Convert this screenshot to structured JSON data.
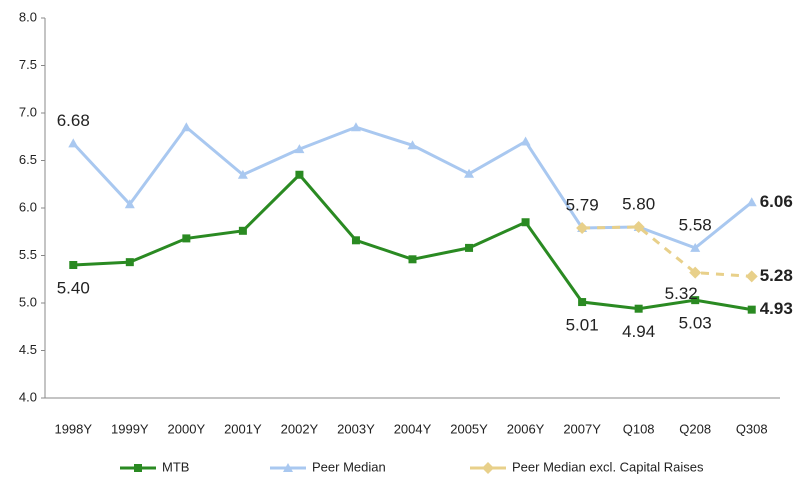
{
  "chart_data": {
    "type": "line",
    "categories": [
      "1998Y",
      "1999Y",
      "2000Y",
      "2001Y",
      "2002Y",
      "2003Y",
      "2004Y",
      "2005Y",
      "2006Y",
      "2007Y",
      "Q108",
      "Q208",
      "Q308"
    ],
    "ylim": [
      4.0,
      8.0
    ],
    "yticks": [
      {
        "value": 4.0,
        "label": "4.0"
      },
      {
        "value": 4.5,
        "label": "4.5"
      },
      {
        "value": 5.0,
        "label": "5.0"
      },
      {
        "value": 5.5,
        "label": "5.5"
      },
      {
        "value": 6.0,
        "label": "6.0"
      },
      {
        "value": 6.5,
        "label": "6.5"
      },
      {
        "value": 7.0,
        "label": "7.0"
      },
      {
        "value": 7.5,
        "label": "7.5"
      },
      {
        "value": 8.0,
        "label": "8.0"
      }
    ],
    "legend": "bottom",
    "series": [
      {
        "name": "MTB",
        "color": "#2a8a22",
        "marker": "square",
        "dashed": false,
        "values": [
          5.4,
          5.43,
          5.68,
          5.76,
          6.35,
          5.66,
          5.46,
          5.58,
          5.85,
          5.01,
          4.94,
          5.03,
          4.93
        ],
        "value_labels": [
          "5.40",
          null,
          null,
          null,
          null,
          null,
          null,
          null,
          null,
          "5.01",
          "4.94",
          "5.03",
          "4.93"
        ]
      },
      {
        "name": "Peer Median",
        "color": "#a9c8f0",
        "marker": "triangle",
        "dashed": false,
        "values": [
          6.68,
          6.04,
          6.85,
          6.35,
          6.62,
          6.85,
          6.66,
          6.36,
          6.7,
          5.79,
          5.8,
          5.58,
          6.06
        ],
        "value_labels": [
          "6.68",
          null,
          null,
          null,
          null,
          null,
          null,
          null,
          null,
          "5.79",
          "5.80",
          "5.58",
          "6.06"
        ]
      },
      {
        "name": "Peer Median excl. Capital Raises",
        "color": "#e8d08a",
        "marker": "diamond",
        "dashed": true,
        "values": [
          null,
          null,
          null,
          null,
          null,
          null,
          null,
          null,
          null,
          5.79,
          5.8,
          5.32,
          5.28
        ],
        "value_labels": [
          null,
          null,
          null,
          null,
          null,
          null,
          null,
          null,
          null,
          null,
          null,
          "5.32",
          "5.28"
        ]
      }
    ]
  }
}
